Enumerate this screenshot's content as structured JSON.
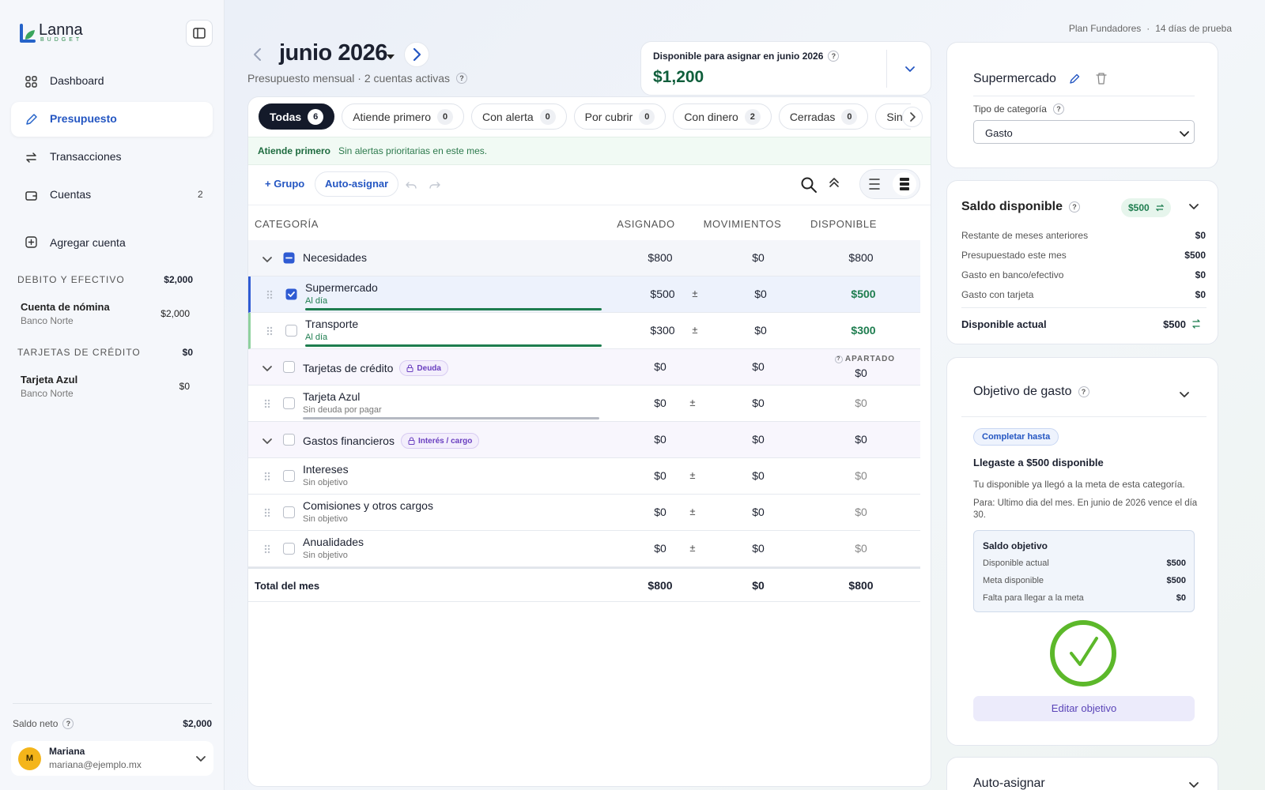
{
  "sidebar": {
    "logo": {
      "name": "Lanna",
      "sub": "BUDGET"
    },
    "nav": [
      {
        "label": "Dashboard"
      },
      {
        "label": "Presupuesto",
        "active": true
      },
      {
        "label": "Transacciones"
      },
      {
        "label": "Cuentas",
        "count": "2"
      }
    ],
    "add_account": "Agregar cuenta",
    "groups": [
      {
        "title": "DEBITO Y EFECTIVO",
        "total": "$2,000",
        "accounts": [
          {
            "name": "Cuenta de nómina",
            "bank": "Banco Norte",
            "balance": "$2,000"
          }
        ]
      },
      {
        "title": "TARJETAS DE CRÉDITO",
        "total": "$0",
        "accounts": [
          {
            "name": "Tarjeta Azul",
            "bank": "Banco Norte",
            "balance": "$0"
          }
        ]
      }
    ],
    "net": {
      "label": "Saldo neto",
      "help": "?",
      "value": "$2,000"
    },
    "user": {
      "initial": "M",
      "name": "Mariana",
      "email": "mariana@ejemplo.mx"
    }
  },
  "topbar": {
    "plan": "Plan Fundadores",
    "sep": "·",
    "trial": "14 días de prueba"
  },
  "header": {
    "month": "junio 2026",
    "subtitle": "Presupuesto mensual · 2 cuentas activas",
    "help": "?"
  },
  "available": {
    "label": "Disponible para asignar en junio 2026",
    "help": "?",
    "value": "$1,200"
  },
  "filters": [
    {
      "label": "Todas",
      "count": "6",
      "active": true
    },
    {
      "label": "Atiende primero",
      "count": "0"
    },
    {
      "label": "Con alerta",
      "count": "0"
    },
    {
      "label": "Por cubrir",
      "count": "0"
    },
    {
      "label": "Con dinero",
      "count": "2"
    },
    {
      "label": "Cerradas",
      "count": "0"
    },
    {
      "label": "Sin objetivo"
    }
  ],
  "alert": {
    "title": "Atiende primero",
    "text": "Sin alertas prioritarias en este mes."
  },
  "toolbar": {
    "group": "+ Grupo",
    "auto": "Auto-asignar"
  },
  "table": {
    "columns": [
      "CATEGORÍA",
      "ASIGNADO",
      "MOVIMIENTOS",
      "DISPONIBLE"
    ],
    "rows": [
      {
        "kind": "group",
        "name": "Necesidades",
        "check": "partial",
        "assigned": "$800",
        "activity": "$0",
        "available": "$800"
      },
      {
        "kind": "item",
        "name": "Supermercado",
        "status": "Al día",
        "selected": true,
        "check": "checked",
        "bar": "#1e7d4f",
        "assigned": "$500",
        "adjust": "±",
        "activity": "$0",
        "available": "$500",
        "good": true
      },
      {
        "kind": "item",
        "name": "Transporte",
        "status": "Al día",
        "accent": "#8fd19e",
        "bar": "#1e7d4f",
        "assigned": "$300",
        "adjust": "±",
        "activity": "$0",
        "available": "$300",
        "good": true
      },
      {
        "kind": "group",
        "name": "Tarjetas de crédito",
        "badge": "Deuda",
        "note": "APARTADO",
        "note_help": "?",
        "assigned": "$0",
        "activity": "$0",
        "available": "$0"
      },
      {
        "kind": "item",
        "name": "Tarjeta Azul",
        "status": "Sin deuda por pagar",
        "bar": "#b5b9c2",
        "assigned": "$0",
        "adjust": "±",
        "activity": "$0",
        "available": "$0"
      },
      {
        "kind": "group",
        "name": "Gastos financieros",
        "badge": "Interés / cargo",
        "assigned": "$0",
        "activity": "$0",
        "available": "$0"
      },
      {
        "kind": "item",
        "name": "Intereses",
        "status": "Sin objetivo",
        "assigned": "$0",
        "adjust": "±",
        "activity": "$0",
        "available": "$0"
      },
      {
        "kind": "item",
        "name": "Comisiones y otros cargos",
        "status": "Sin objetivo",
        "assigned": "$0",
        "adjust": "±",
        "activity": "$0",
        "available": "$0"
      },
      {
        "kind": "item",
        "name": "Anualidades",
        "status": "Sin objetivo",
        "assigned": "$0",
        "adjust": "±",
        "activity": "$0",
        "available": "$0"
      }
    ],
    "total": {
      "label": "Total del mes",
      "assigned": "$800",
      "activity": "$0",
      "available": "$800"
    }
  },
  "category_panel": {
    "title": "Supermercado",
    "type_label": "Tipo de categoría",
    "help": "?",
    "type_value": "Gasto"
  },
  "balance_panel": {
    "title": "Saldo disponible",
    "help": "?",
    "badge": "$500",
    "rows": [
      {
        "label": "Restante de meses anteriores",
        "value": "$0"
      },
      {
        "label": "Presupuestado este mes",
        "value": "$500"
      },
      {
        "label": "Gasto en banco/efectivo",
        "value": "$0"
      },
      {
        "label": "Gasto con tarjeta",
        "value": "$0"
      }
    ],
    "current": {
      "label": "Disponible actual",
      "value": "$500"
    }
  },
  "goal_panel": {
    "title": "Objetivo de gasto",
    "help": "?",
    "tag": "Completar hasta",
    "headline": "Llegaste a $500 disponible",
    "desc": "Tu disponible ya llegó a la meta de esta categoría.",
    "due": "Para: Ultimo dia del mes. En junio de 2026 vence el día 30.",
    "box": {
      "title": "Saldo objetivo",
      "rows": [
        {
          "label": "Disponible actual",
          "value": "$500"
        },
        {
          "label": "Meta disponible",
          "value": "$500"
        },
        {
          "label": "Falta para llegar a la meta",
          "value": "$0"
        }
      ]
    },
    "button": "Editar objetivo"
  },
  "auto_panel": {
    "title": "Auto-asignar"
  }
}
